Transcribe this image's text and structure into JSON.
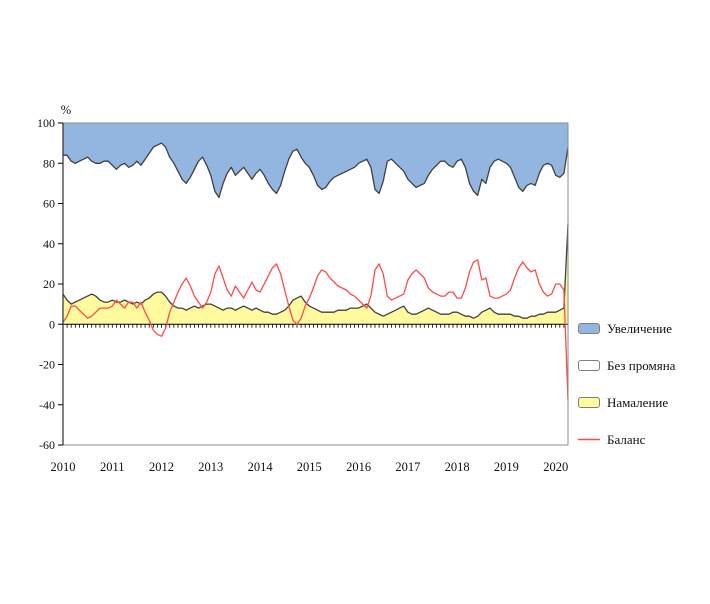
{
  "figure": {
    "background": "#ffffff",
    "percent_label": "%"
  },
  "chart_data": {
    "type": "area",
    "title": "",
    "ylabel": "%",
    "ylim": [
      -60,
      100
    ],
    "yticks": [
      100,
      80,
      60,
      40,
      20,
      0,
      -20,
      -40,
      -60
    ],
    "x_start": "2010-01",
    "x_end": "2020-04",
    "x_frequency": "monthly",
    "xtick_labels": [
      "2010",
      "2011",
      "2012",
      "2013",
      "2014",
      "2015",
      "2016",
      "2017",
      "2018",
      "2019",
      "2020"
    ],
    "grid": false,
    "legend_position": "right",
    "stacking_note": "Увеличение + Без промяна + Намаление = 100; Баланс = Увеличение - Намаление",
    "colors": {
      "increase_fill": "#92B6E0",
      "no_change_fill": "#FFFFFF",
      "decrease_fill": "#FFFA9D",
      "balance_line": "#FF4B4B",
      "area_outline": "#404040",
      "frame": "#8C8C8C",
      "axis": "#000000"
    },
    "series": [
      {
        "name": "Увеличение",
        "role": "increase",
        "render": "stacked-area-top",
        "values": [
          16,
          16,
          19,
          20,
          19,
          18,
          17,
          19,
          20,
          20,
          19,
          19,
          21,
          23,
          21,
          20,
          22,
          21,
          19,
          21,
          18,
          15,
          12,
          11,
          10,
          12,
          17,
          20,
          24,
          28,
          30,
          27,
          23,
          19,
          17,
          21,
          26,
          34,
          37,
          30,
          25,
          22,
          26,
          24,
          22,
          25,
          28,
          25,
          23,
          26,
          30,
          33,
          35,
          31,
          24,
          18,
          14,
          13,
          17,
          20,
          22,
          26,
          31,
          33,
          32,
          29,
          27,
          26,
          25,
          24,
          23,
          22,
          20,
          19,
          18,
          22,
          33,
          35,
          29,
          19,
          18,
          20,
          22,
          24,
          28,
          30,
          32,
          31,
          30,
          26,
          23,
          21,
          19,
          19,
          21,
          22,
          19,
          18,
          22,
          30,
          34,
          36,
          28,
          30,
          22,
          19,
          18,
          19,
          20,
          22,
          27,
          32,
          34,
          31,
          30,
          31,
          25,
          21,
          20,
          21,
          26,
          27,
          25,
          12
        ]
      },
      {
        "name": "Без промяна",
        "role": "no_change",
        "render": "stacked-area-middle",
        "values": [
          69,
          72,
          71,
          69,
          69,
          69,
          69,
          66,
          66,
          68,
          70,
          70,
          67,
          66,
          68,
          68,
          67,
          69,
          70,
          69,
          70,
          72,
          73,
          73,
          74,
          74,
          72,
          71,
          68,
          64,
          63,
          65,
          68,
          73,
          74,
          69,
          64,
          57,
          55,
          63,
          67,
          70,
          67,
          68,
          69,
          67,
          65,
          67,
          70,
          68,
          64,
          62,
          60,
          63,
          69,
          73,
          74,
          74,
          69,
          69,
          69,
          66,
          62,
          61,
          62,
          65,
          67,
          67,
          68,
          69,
          69,
          70,
          72,
          72,
          72,
          70,
          61,
          60,
          67,
          76,
          76,
          73,
          70,
          67,
          66,
          65,
          63,
          63,
          63,
          66,
          70,
          73,
          76,
          76,
          74,
          72,
          75,
          77,
          74,
          66,
          63,
          60,
          66,
          63,
          70,
          75,
          77,
          76,
          75,
          73,
          69,
          64,
          63,
          66,
          66,
          65,
          70,
          74,
          74,
          73,
          68,
          66,
          67,
          38
        ]
      },
      {
        "name": "Намаление",
        "role": "decrease",
        "render": "stacked-area-bottom",
        "values": [
          15,
          12,
          10,
          11,
          12,
          13,
          14,
          15,
          14,
          12,
          11,
          11,
          12,
          11,
          11,
          12,
          11,
          10,
          11,
          10,
          12,
          13,
          15,
          16,
          16,
          14,
          11,
          9,
          8,
          8,
          7,
          8,
          9,
          8,
          9,
          10,
          10,
          9,
          8,
          7,
          8,
          8,
          7,
          8,
          9,
          8,
          7,
          8,
          7,
          6,
          6,
          5,
          5,
          6,
          7,
          9,
          12,
          13,
          14,
          11,
          9,
          8,
          7,
          6,
          6,
          6,
          6,
          7,
          7,
          7,
          8,
          8,
          8,
          9,
          10,
          8,
          6,
          5,
          4,
          5,
          6,
          7,
          8,
          9,
          6,
          5,
          5,
          6,
          7,
          8,
          7,
          6,
          5,
          5,
          5,
          6,
          6,
          5,
          4,
          4,
          3,
          4,
          6,
          7,
          8,
          6,
          5,
          5,
          5,
          5,
          4,
          4,
          3,
          3,
          4,
          4,
          5,
          5,
          6,
          6,
          6,
          7,
          8,
          50
        ]
      },
      {
        "name": "Баланс",
        "role": "balance",
        "render": "line",
        "values": [
          1,
          4,
          9,
          9,
          7,
          5,
          3,
          4,
          6,
          8,
          8,
          8,
          9,
          12,
          10,
          8,
          11,
          11,
          8,
          11,
          6,
          2,
          -3,
          -5,
          -6,
          -2,
          6,
          11,
          16,
          20,
          23,
          19,
          14,
          11,
          8,
          11,
          16,
          25,
          29,
          23,
          17,
          14,
          19,
          16,
          13,
          17,
          21,
          17,
          16,
          20,
          24,
          28,
          30,
          25,
          17,
          9,
          2,
          0,
          3,
          9,
          13,
          18,
          24,
          27,
          26,
          23,
          21,
          19,
          18,
          17,
          15,
          14,
          12,
          10,
          8,
          14,
          27,
          30,
          25,
          14,
          12,
          13,
          14,
          15,
          22,
          25,
          27,
          25,
          23,
          18,
          16,
          15,
          14,
          14,
          16,
          16,
          13,
          13,
          18,
          26,
          31,
          32,
          22,
          23,
          14,
          13,
          13,
          14,
          15,
          17,
          23,
          28,
          31,
          28,
          26,
          27,
          20,
          16,
          14,
          15,
          20,
          20,
          17,
          -38
        ]
      }
    ]
  },
  "legend": {
    "items": [
      {
        "label": "Увеличение",
        "swatch": "area",
        "color": "#92B6E0"
      },
      {
        "label": "Без промяна",
        "swatch": "area",
        "color": "#FFFFFF"
      },
      {
        "label": "Намаление",
        "swatch": "area",
        "color": "#FFFA9D"
      },
      {
        "label": "Баланс",
        "swatch": "line",
        "color": "#FF4B4B"
      }
    ]
  }
}
